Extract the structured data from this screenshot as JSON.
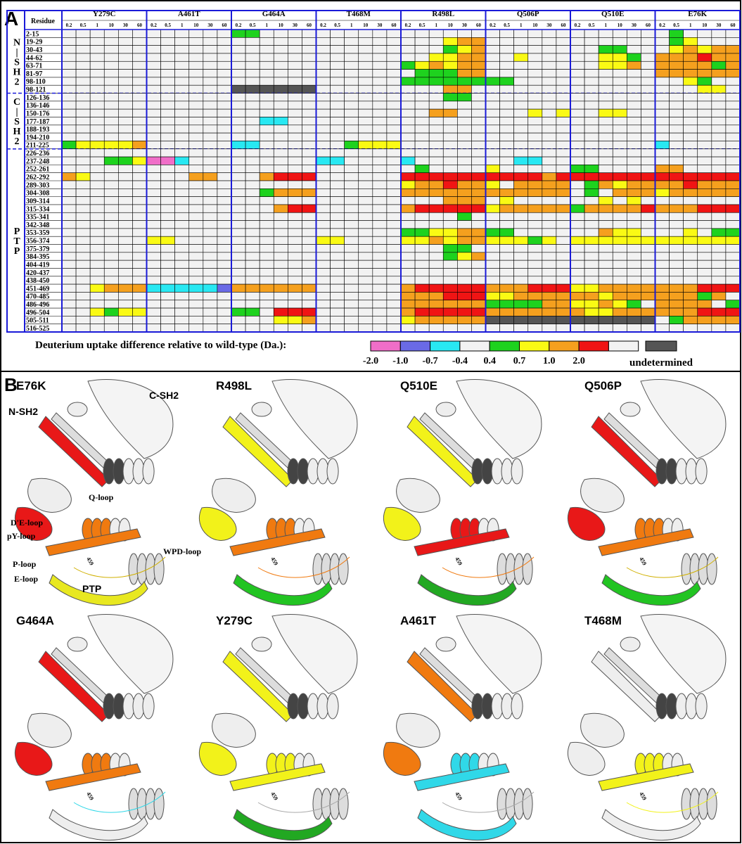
{
  "panel_a": {
    "label": "A",
    "residue_header": "Residue",
    "mutants": [
      "Y279C",
      "A461T",
      "G464A",
      "T468M",
      "R498L",
      "Q506P",
      "Q510E",
      "E76K"
    ],
    "times": [
      "0.2",
      "0.5",
      "1",
      "10",
      "30",
      "60"
    ],
    "groups": [
      {
        "letters": [
          "N",
          "|",
          "S",
          "H",
          "2"
        ],
        "rows": [
          {
            "residue": "2-15",
            "cells": [
              "333333",
              "333333",
              "443333",
              "333333",
              "333333",
              "333333",
              "333333",
              "343333"
            ]
          },
          {
            "residue": "19-29",
            "cells": [
              "333333",
              "333333",
              "333333",
              "333333",
              "333566",
              "333333",
              "333333",
              "345333"
            ]
          },
          {
            "residue": "30-43",
            "cells": [
              "333333",
              "333333",
              "333333",
              "333333",
              "333456",
              "333333",
              "334433",
              "356566"
            ]
          },
          {
            "residue": "44-62",
            "cells": [
              "333333",
              "333333",
              "333333",
              "333333",
              "335566",
              "335333",
              "335543",
              "666766"
            ]
          },
          {
            "residue": "63-71",
            "cells": [
              "333333",
              "333333",
              "333333",
              "333333",
              "456566",
              "333333",
              "335563",
              "666646"
            ]
          },
          {
            "residue": "81-97",
            "cells": [
              "333333",
              "333333",
              "333333",
              "333333",
              "344466",
              "333333",
              "333333",
              "666666"
            ]
          },
          {
            "residue": "98-110",
            "cells": [
              "333333",
              "333333",
              "333333",
              "333333",
              "444444",
              "443333",
              "333333",
              "335433"
            ]
          },
          {
            "residue": "98-121",
            "cells": [
              "333333",
              "333333",
              "888888",
              "333333",
              "333663",
              "333333",
              "333333",
              "333553"
            ]
          }
        ]
      },
      {
        "letters": [
          "C",
          "|",
          "S",
          "H",
          "2"
        ],
        "rows": [
          {
            "residue": "126-136",
            "cells": [
              "333333",
              "333333",
              "333333",
              "333333",
              "333443",
              "333333",
              "333333",
              "333333"
            ]
          },
          {
            "residue": "136-146",
            "cells": [
              "333333",
              "333333",
              "333333",
              "333333",
              "333333",
              "333333",
              "333333",
              "333333"
            ]
          },
          {
            "residue": "150-176",
            "cells": [
              "333333",
              "333333",
              "333333",
              "333333",
              "336633",
              "333535",
              "335533",
              "333333"
            ]
          },
          {
            "residue": "177-187",
            "cells": [
              "333333",
              "333333",
              "332233",
              "333333",
              "333333",
              "333333",
              "333333",
              "333333"
            ]
          },
          {
            "residue": "188-193",
            "cells": [
              "333333",
              "333333",
              "333333",
              "333333",
              "333333",
              "333333",
              "333333",
              "333333"
            ]
          },
          {
            "residue": "194-210",
            "cells": [
              "333333",
              "333333",
              "333333",
              "333333",
              "333333",
              "333333",
              "333333",
              "333333"
            ]
          },
          {
            "residue": "211-225",
            "cells": [
              "455556",
              "333333",
              "223333",
              "334555",
              "333333",
              "333333",
              "333333",
              "233333"
            ]
          }
        ]
      },
      {
        "letters": [
          "P",
          "T",
          "P"
        ],
        "rows": [
          {
            "residue": "226-236",
            "cells": [
              "333333",
              "333333",
              "333333",
              "333333",
              "333333",
              "333333",
              "333333",
              "333333"
            ]
          },
          {
            "residue": "237-248",
            "cells": [
              "333445",
              "002333",
              "333333",
              "223333",
              "233333",
              "332233",
              "333333",
              "333333"
            ]
          },
          {
            "residue": "252-261",
            "cells": [
              "333333",
              "333333",
              "333333",
              "333333",
              "343333",
              "533333",
              "443333",
              "663333"
            ]
          },
          {
            "residue": "262-292",
            "cells": [
              "653333",
              "333663",
              "336777",
              "333333",
              "777777",
              "777767",
              "777777",
              "777777"
            ]
          },
          {
            "residue": "289-303",
            "cells": [
              "333333",
              "333333",
              "333333",
              "333333",
              "566766",
              "536666",
              "346566",
              "667666"
            ]
          },
          {
            "residue": "304-308",
            "cells": [
              "333333",
              "333333",
              "334666",
              "333333",
              "666666",
              "666666",
              "343666",
              "566666"
            ]
          },
          {
            "residue": "309-314",
            "cells": [
              "333333",
              "333333",
              "333333",
              "333333",
              "333666",
              "353333",
              "335353",
              "333333"
            ]
          },
          {
            "residue": "315-334",
            "cells": [
              "333333",
              "333333",
              "333677",
              "333333",
              "677777",
              "566666",
              "466667",
              "666777"
            ]
          },
          {
            "residue": "335-341",
            "cells": [
              "333333",
              "333333",
              "333333",
              "333333",
              "333343",
              "333333",
              "333333",
              "333333"
            ]
          },
          {
            "residue": "342-348",
            "cells": [
              "333333",
              "333333",
              "333333",
              "333333",
              "333333",
              "333333",
              "333333",
              "333333"
            ]
          },
          {
            "residue": "353-359",
            "cells": [
              "333333",
              "333333",
              "333333",
              "333333",
              "445566",
              "443333",
              "336553",
              "335344"
            ]
          },
          {
            "residue": "356-374",
            "cells": [
              "333333",
              "553333",
              "333333",
              "553333",
              "556566",
              "555453",
              "555555",
              "555555"
            ]
          },
          {
            "residue": "375-379",
            "cells": [
              "333333",
              "333333",
              "333333",
              "333333",
              "333443",
              "333333",
              "333333",
              "333333"
            ]
          },
          {
            "residue": "384-395",
            "cells": [
              "333333",
              "333333",
              "333333",
              "333333",
              "333456",
              "333333",
              "333333",
              "333333"
            ]
          },
          {
            "residue": "404-419",
            "cells": [
              "333333",
              "333333",
              "333333",
              "333333",
              "333333",
              "333333",
              "333333",
              "333333"
            ]
          },
          {
            "residue": "420-437",
            "cells": [
              "333333",
              "333333",
              "333333",
              "333333",
              "333333",
              "333333",
              "333333",
              "333333"
            ]
          },
          {
            "residue": "438-450",
            "cells": [
              "333333",
              "333333",
              "333333",
              "333333",
              "333333",
              "333333",
              "333333",
              "333333"
            ]
          },
          {
            "residue": "451-469",
            "cells": [
              "335666",
              "222221",
              "666666",
              "333333",
              "677777",
              "666777",
              "556666",
              "666777"
            ]
          },
          {
            "residue": "470-485",
            "cells": [
              "333333",
              "333333",
              "333333",
              "333333",
              "666777",
              "556666",
              "665666",
              "666463"
            ]
          },
          {
            "residue": "486-496",
            "cells": [
              "333333",
              "333333",
              "333333",
              "333333",
              "666666",
              "444466",
              "556543",
              "666634"
            ]
          },
          {
            "residue": "496-504",
            "cells": [
              "335455",
              "333333",
              "443777",
              "333333",
              "677777",
              "666666",
              "655666",
              "666777"
            ]
          },
          {
            "residue": "505-511",
            "cells": [
              "333333",
              "333333",
              "333556",
              "333333",
              "566666",
              "888888",
              "888888",
              "346666"
            ]
          },
          {
            "residue": "516-525",
            "cells": [
              "333333",
              "333333",
              "333333",
              "333333",
              "333333",
              "333333",
              "333333",
              "333333"
            ]
          }
        ]
      }
    ],
    "legend": {
      "title": "Deuterium uptake difference relative to wild-type (Da.):",
      "colors": [
        "#f06ec8",
        "#6a6ae6",
        "#28e8f2",
        "#f2f2f2",
        "#1ed21e",
        "#fafa14",
        "#f5a01e",
        "#f01414",
        "#555555"
      ],
      "labels": [
        "-2.0",
        "-1.0",
        "-0.7",
        "-0.4",
        "0.4",
        "0.7",
        "1.0",
        "2.0"
      ],
      "undetermined": "undetermined"
    }
  },
  "panel_b": {
    "label": "B",
    "structures": [
      {
        "name": "E76K",
        "residue_label": "459",
        "annotations": [
          "N-SH2",
          "C-SH2",
          "Q-loop",
          "D'E-loop",
          "pY-loop",
          "WPD-loop",
          "P-loop",
          "E-loop",
          "PTP"
        ]
      },
      {
        "name": "R498L",
        "residue_label": "459"
      },
      {
        "name": "Q510E",
        "residue_label": "459"
      },
      {
        "name": "Q506P",
        "residue_label": "459"
      },
      {
        "name": "G464A",
        "residue_label": "459"
      },
      {
        "name": "Y279C",
        "residue_label": "459"
      },
      {
        "name": "A461T",
        "residue_label": "459"
      },
      {
        "name": "T468M",
        "residue_label": "459"
      }
    ]
  }
}
